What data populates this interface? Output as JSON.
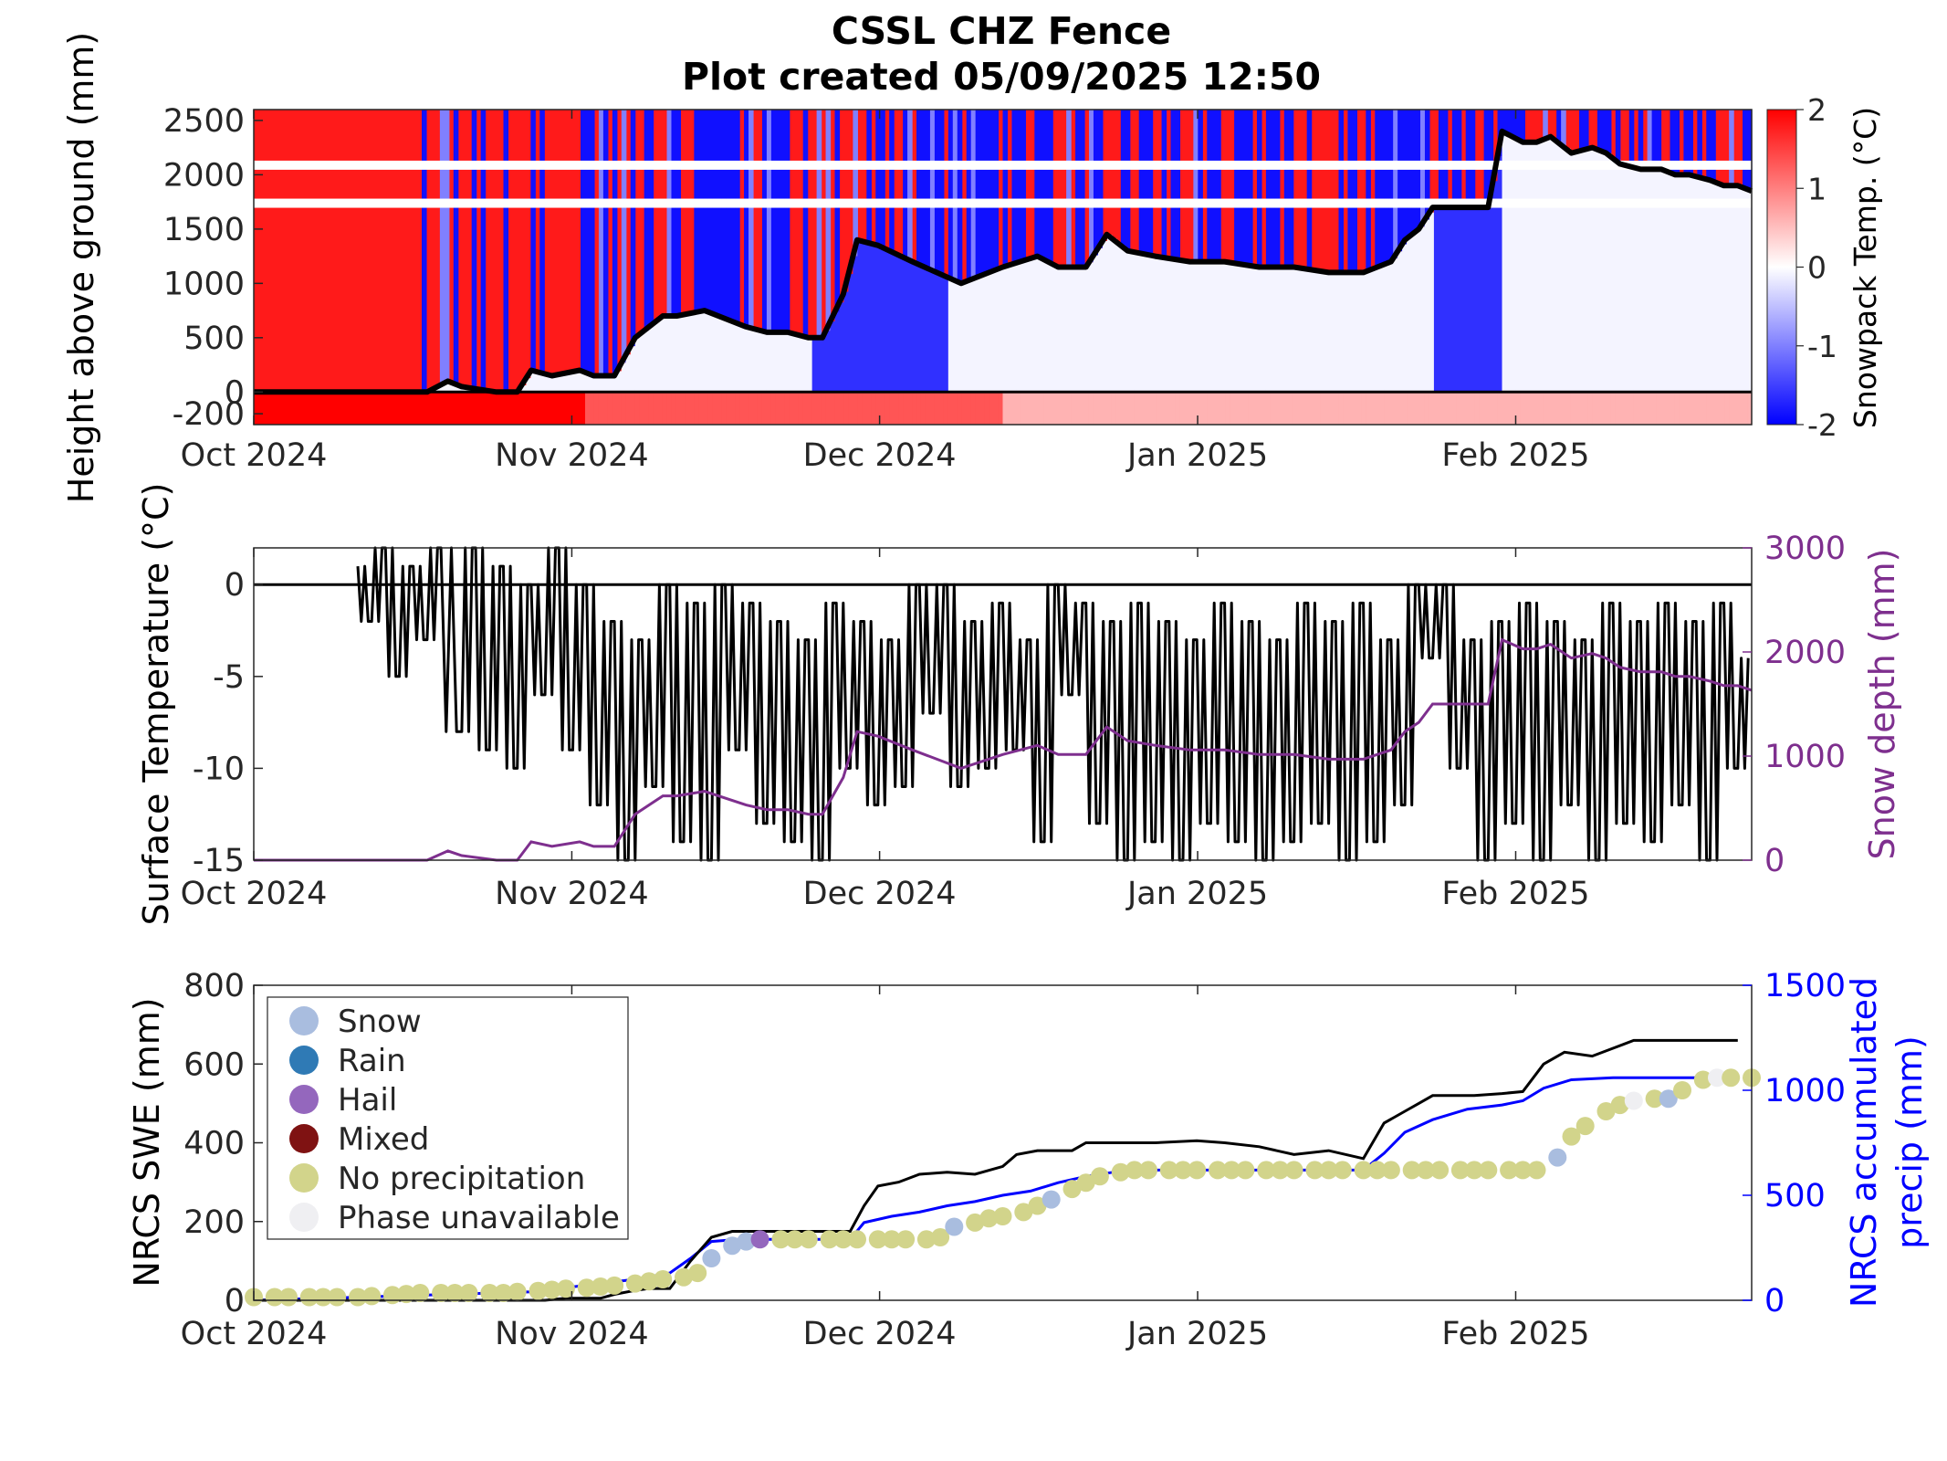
{
  "title": {
    "line1": "CSSL CHZ Fence",
    "line2": "Plot created 05/09/2025 12:50"
  },
  "colors": {
    "warm": "#ff0000",
    "cold": "#0000ff",
    "snow_depth": "#7e2f8e",
    "precip": "#0000ff",
    "swe": "#000000"
  },
  "chart_data": [
    {
      "id": "snowpack-temperature",
      "type": "heatmap",
      "ylabel": "Height above ground (mm)",
      "colorbar_label": "Snowpack Temp. (°C)",
      "colorbar_range": [
        -2,
        2
      ],
      "colorbar_ticks": [
        "2",
        "1",
        "0",
        "-1",
        "-2"
      ],
      "xlim": [
        "2024-10-01",
        "2025-02-24"
      ],
      "ylim": [
        -300,
        2600
      ],
      "xticks": [
        "Oct 2024",
        "Nov 2024",
        "Dec 2024",
        "Jan 2025",
        "Feb 2025"
      ],
      "yticks": [
        "2500",
        "2000",
        "1500",
        "1000",
        "500",
        "0",
        "-200"
      ],
      "ground_line": 0,
      "snow_depth_days": [
        0,
        25,
        28,
        30,
        35,
        38,
        40,
        43,
        47,
        49,
        52,
        55,
        57,
        59,
        61,
        65,
        69,
        71,
        74,
        77,
        80,
        82,
        85,
        87,
        90,
        95,
        102,
        108,
        113,
        116,
        120,
        123,
        126,
        130,
        135,
        140,
        145,
        150,
        155,
        160,
        162,
        164,
        166,
        168,
        170,
        172,
        174,
        176,
        178,
        180,
        183,
        185,
        187,
        190,
        193,
        195,
        197,
        200,
        203,
        205,
        207,
        210,
        212,
        214,
        216
      ],
      "snow_depth_mm": [
        0,
        0,
        100,
        50,
        0,
        0,
        200,
        150,
        200,
        150,
        150,
        500,
        600,
        700,
        700,
        750,
        650,
        600,
        550,
        550,
        500,
        500,
        900,
        1400,
        1350,
        1200,
        1000,
        1150,
        1250,
        1150,
        1150,
        1450,
        1300,
        1250,
        1200,
        1200,
        1150,
        1150,
        1100,
        1100,
        1150,
        1200,
        1400,
        1500,
        1700,
        1700,
        1700,
        1700,
        1700,
        2400,
        2300,
        2300,
        2350,
        2200,
        2250,
        2200,
        2100,
        2050,
        2050,
        2000,
        2000,
        1950,
        1900,
        1900,
        1850
      ]
    },
    {
      "id": "surface-temperature",
      "type": "line",
      "ylabel": "Surface Temperature (°C)",
      "y2label": "Snow depth (mm)",
      "xlim": [
        "2024-10-01",
        "2025-02-24"
      ],
      "ylim": [
        -15,
        2
      ],
      "y2lim": [
        0,
        3000
      ],
      "xticks": [
        "Oct 2024",
        "Nov 2024",
        "Dec 2024",
        "Jan 2025",
        "Feb 2025"
      ],
      "yticks": [
        "0",
        "-5",
        "-10",
        "-15"
      ],
      "y2ticks": [
        "3000",
        "2000",
        "1000",
        "0"
      ],
      "series": [
        {
          "kind": "surface-temperature",
          "days": [
            15,
            17,
            19,
            21,
            23,
            25,
            27,
            30,
            32,
            34,
            36,
            38,
            40,
            42,
            44,
            46,
            48,
            50,
            52,
            54,
            56,
            58,
            60,
            62,
            64,
            66,
            68,
            70,
            72,
            74,
            76,
            78,
            80,
            82,
            84,
            86,
            88,
            90,
            92,
            94,
            96,
            98,
            100,
            102,
            104,
            106,
            108,
            110,
            112,
            114,
            116,
            118,
            120,
            122,
            124,
            126,
            128,
            130,
            132,
            134,
            136,
            138,
            140,
            142,
            144,
            146,
            148,
            150,
            152,
            154,
            156,
            158,
            160,
            162,
            164,
            166,
            168,
            170,
            172,
            174,
            176,
            178,
            180,
            182,
            184,
            186,
            188,
            190,
            192,
            194,
            196,
            198,
            200,
            202,
            204,
            206,
            208,
            210,
            212,
            214,
            216
          ],
          "values": [
            1,
            -2,
            2,
            -5,
            1,
            -3,
            2,
            -8,
            2,
            -9,
            1,
            -10,
            0,
            -6,
            2,
            -9,
            0,
            -12,
            -2,
            -15,
            -3,
            -11,
            0,
            -14,
            -1,
            -15,
            0,
            -9,
            -1,
            -13,
            -2,
            -14,
            -3,
            -15,
            -1,
            -10,
            -2,
            -12,
            -3,
            -11,
            0,
            -7,
            0,
            -11,
            -2,
            -10,
            -1,
            -9,
            -3,
            -14,
            0,
            -6,
            -1,
            -13,
            -2,
            -15,
            -1,
            -14,
            -2,
            -15,
            -3,
            -13,
            -1,
            -14,
            -2,
            -15,
            -3,
            -14,
            -1,
            -13,
            -2,
            -15,
            -1,
            -14,
            -3,
            -12,
            0,
            -4,
            0,
            -10,
            -3,
            -15,
            -2,
            -13,
            -1,
            -15,
            -2,
            -12,
            -3,
            -15,
            -1,
            -13,
            -2,
            -14,
            -1,
            -12,
            -2,
            -15,
            -1,
            -10,
            -4
          ]
        },
        {
          "kind": "snow-depth",
          "days": [
            0,
            25,
            28,
            30,
            35,
            38,
            40,
            43,
            47,
            49,
            52,
            55,
            57,
            59,
            61,
            65,
            69,
            71,
            74,
            77,
            80,
            82,
            85,
            87,
            90,
            95,
            102,
            108,
            113,
            116,
            120,
            123,
            126,
            130,
            135,
            140,
            145,
            150,
            155,
            160,
            162,
            164,
            166,
            168,
            170,
            172,
            174,
            176,
            178,
            180,
            183,
            185,
            187,
            190,
            193,
            195,
            197,
            200,
            203,
            205,
            207,
            210,
            212,
            214,
            216
          ],
          "values": [
            0,
            0,
            100,
            50,
            0,
            0,
            200,
            150,
            200,
            150,
            150,
            500,
            600,
            700,
            700,
            750,
            650,
            600,
            550,
            550,
            500,
            500,
            900,
            1400,
            1350,
            1200,
            1000,
            1150,
            1250,
            1150,
            1150,
            1450,
            1300,
            1250,
            1200,
            1200,
            1150,
            1150,
            1100,
            1100,
            1150,
            1200,
            1400,
            1500,
            1700,
            1700,
            1700,
            1700,
            1700,
            2400,
            2300,
            2300,
            2350,
            2200,
            2250,
            2200,
            2100,
            2050,
            2050,
            2000,
            2000,
            1950,
            1900,
            1900,
            1850
          ]
        }
      ]
    },
    {
      "id": "nrcs-swe",
      "type": "line",
      "ylabel": "NRCS SWE (mm)",
      "y2label_line1": "NRCS accumulated",
      "y2label_line2": "precip (mm)",
      "xlim": [
        "2024-10-01",
        "2025-02-24"
      ],
      "ylim": [
        0,
        800
      ],
      "y2lim": [
        0,
        1500
      ],
      "xticks": [
        "Oct 2024",
        "Nov 2024",
        "Dec 2024",
        "Jan 2025",
        "Feb 2025"
      ],
      "yticks": [
        "800",
        "600",
        "400",
        "200",
        "0"
      ],
      "y2ticks": [
        "1500",
        "1000",
        "500",
        "0"
      ],
      "legend": {
        "placement": "top-left",
        "entries": [
          {
            "label": "Snow",
            "color": "#a9bddf"
          },
          {
            "label": "Rain",
            "color": "#2f7ab5"
          },
          {
            "label": "Hail",
            "color": "#9467bd"
          },
          {
            "label": "Mixed",
            "color": "#7f1212"
          },
          {
            "label": "No precipitation",
            "color": "#d2d48b"
          },
          {
            "label": "Phase unavailable",
            "color": "#efeff2"
          }
        ]
      },
      "swe": {
        "days": [
          0,
          42,
          45,
          50,
          52,
          55,
          57,
          60,
          63,
          66,
          69,
          72,
          74,
          80,
          86,
          88,
          90,
          93,
          96,
          100,
          104,
          108,
          110,
          113,
          118,
          120,
          124,
          127,
          130,
          136,
          140,
          145,
          150,
          155,
          160,
          163,
          166,
          168,
          170,
          172,
          176,
          180,
          183,
          186,
          189,
          193,
          196,
          199,
          205,
          210,
          214
        ],
        "values": [
          0,
          0,
          5,
          5,
          15,
          25,
          30,
          30,
          100,
          160,
          175,
          175,
          175,
          175,
          175,
          240,
          290,
          300,
          320,
          325,
          320,
          340,
          370,
          380,
          380,
          400,
          400,
          400,
          400,
          405,
          400,
          390,
          370,
          380,
          360,
          450,
          480,
          500,
          520,
          520,
          520,
          525,
          530,
          600,
          630,
          620,
          640,
          660,
          660,
          660,
          660
        ]
      },
      "precip": {
        "days": [
          0,
          40,
          50,
          55,
          60,
          63,
          66,
          70,
          80,
          86,
          88,
          92,
          96,
          100,
          104,
          108,
          112,
          116,
          120,
          124,
          127,
          140,
          150,
          160,
          163,
          166,
          170,
          175,
          180,
          183,
          186,
          190,
          196,
          205,
          214
        ],
        "values": [
          0,
          40,
          80,
          100,
          130,
          200,
          280,
          290,
          290,
          290,
          370,
          400,
          420,
          450,
          470,
          500,
          520,
          560,
          590,
          610,
          620,
          620,
          620,
          620,
          700,
          800,
          860,
          910,
          930,
          950,
          1010,
          1050,
          1060,
          1060,
          1060
        ]
      },
      "phase_points": {
        "days": [
          0,
          3,
          5,
          8,
          10,
          12,
          15,
          17,
          20,
          22,
          24,
          27,
          29,
          31,
          34,
          36,
          38,
          41,
          43,
          45,
          48,
          50,
          52,
          55,
          57,
          59,
          62,
          64,
          66,
          69,
          71,
          73,
          76,
          78,
          80,
          83,
          85,
          87,
          90,
          92,
          94,
          97,
          99,
          101,
          104,
          106,
          108,
          111,
          113,
          115,
          118,
          120,
          122,
          125,
          127,
          129,
          132,
          134,
          136,
          139,
          141,
          143,
          146,
          148,
          150,
          153,
          155,
          157,
          160,
          162,
          164,
          167,
          169,
          171,
          174,
          176,
          178,
          181,
          183,
          185,
          188,
          190,
          192,
          195,
          197,
          199,
          202,
          204,
          206,
          209,
          211,
          213,
          216
        ],
        "values_mm": [
          15,
          15,
          15,
          15,
          15,
          15,
          15,
          20,
          25,
          30,
          35,
          35,
          35,
          35,
          35,
          35,
          40,
          45,
          50,
          55,
          60,
          65,
          70,
          80,
          90,
          100,
          110,
          130,
          200,
          260,
          280,
          290,
          290,
          290,
          290,
          290,
          290,
          290,
          290,
          290,
          290,
          290,
          300,
          350,
          370,
          390,
          400,
          420,
          450,
          480,
          530,
          560,
          590,
          610,
          620,
          620,
          620,
          620,
          620,
          620,
          620,
          620,
          620,
          620,
          620,
          620,
          620,
          620,
          620,
          620,
          620,
          620,
          620,
          620,
          620,
          620,
          620,
          620,
          620,
          620,
          680,
          780,
          830,
          900,
          930,
          950,
          960,
          960,
          1000,
          1050,
          1060,
          1060,
          1060
        ],
        "phases": [
          "np",
          "np",
          "np",
          "np",
          "np",
          "np",
          "np",
          "np",
          "np",
          "np",
          "np",
          "np",
          "np",
          "np",
          "np",
          "np",
          "np",
          "np",
          "np",
          "np",
          "np",
          "np",
          "np",
          "np",
          "np",
          "np",
          "np",
          "np",
          "snow",
          "snow",
          "snow",
          "hail",
          "np",
          "np",
          "np",
          "np",
          "np",
          "np",
          "np",
          "np",
          "np",
          "np",
          "np",
          "snow",
          "np",
          "np",
          "np",
          "np",
          "np",
          "snow",
          "np",
          "np",
          "np",
          "np",
          "np",
          "np",
          "np",
          "np",
          "np",
          "np",
          "np",
          "np",
          "np",
          "np",
          "np",
          "np",
          "np",
          "np",
          "np",
          "np",
          "np",
          "np",
          "np",
          "np",
          "np",
          "np",
          "np",
          "np",
          "np",
          "np",
          "snow",
          "np",
          "np",
          "np",
          "np",
          "na",
          "np",
          "snow",
          "np",
          "np",
          "na",
          "np",
          "np"
        ]
      }
    }
  ]
}
